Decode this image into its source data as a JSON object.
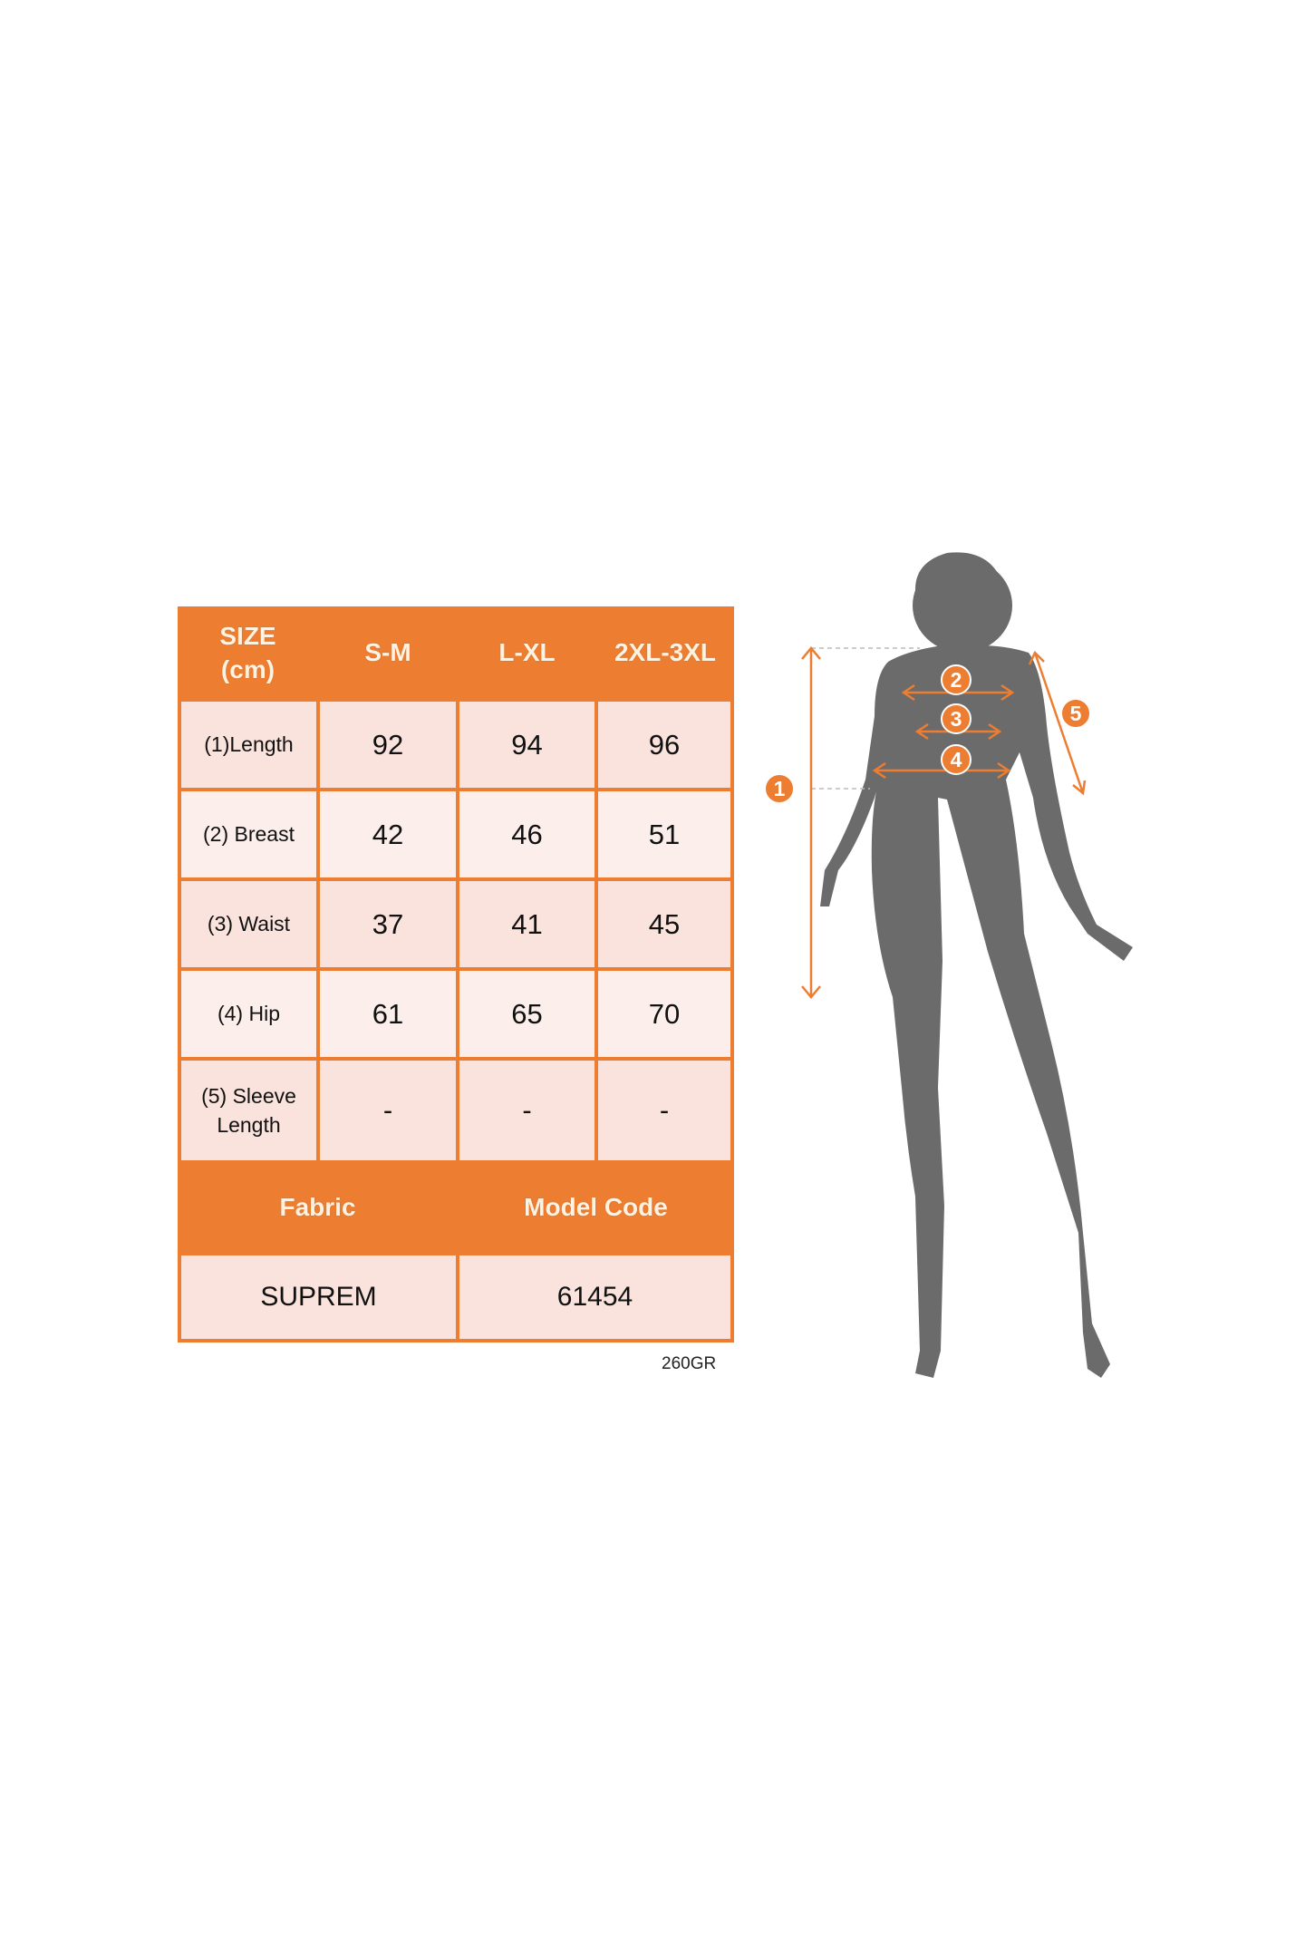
{
  "table": {
    "header": [
      "SIZE\n(cm)",
      "S-M",
      "L-XL",
      "2XL-3XL"
    ],
    "rows": [
      {
        "label": "(1)Length",
        "values": [
          "92",
          "94",
          "96"
        ]
      },
      {
        "label": "(2) Breast",
        "values": [
          "42",
          "46",
          "51"
        ]
      },
      {
        "label": "(3) Waist",
        "values": [
          "37",
          "41",
          "45"
        ]
      },
      {
        "label": "(4) Hip",
        "values": [
          "61",
          "65",
          "70"
        ]
      },
      {
        "label": "(5) Sleeve\nLength",
        "values": [
          "-",
          "-",
          "-"
        ]
      }
    ],
    "footer_header": [
      "Fabric",
      "Model Code"
    ],
    "footer_values": [
      "SUPREM",
      "61454"
    ]
  },
  "weight_note": "260GR",
  "figure": {
    "markers": [
      "1",
      "2",
      "3",
      "4",
      "5"
    ],
    "colors": {
      "accent": "#ed7d31",
      "silhouette": "#6b6b6b"
    }
  }
}
